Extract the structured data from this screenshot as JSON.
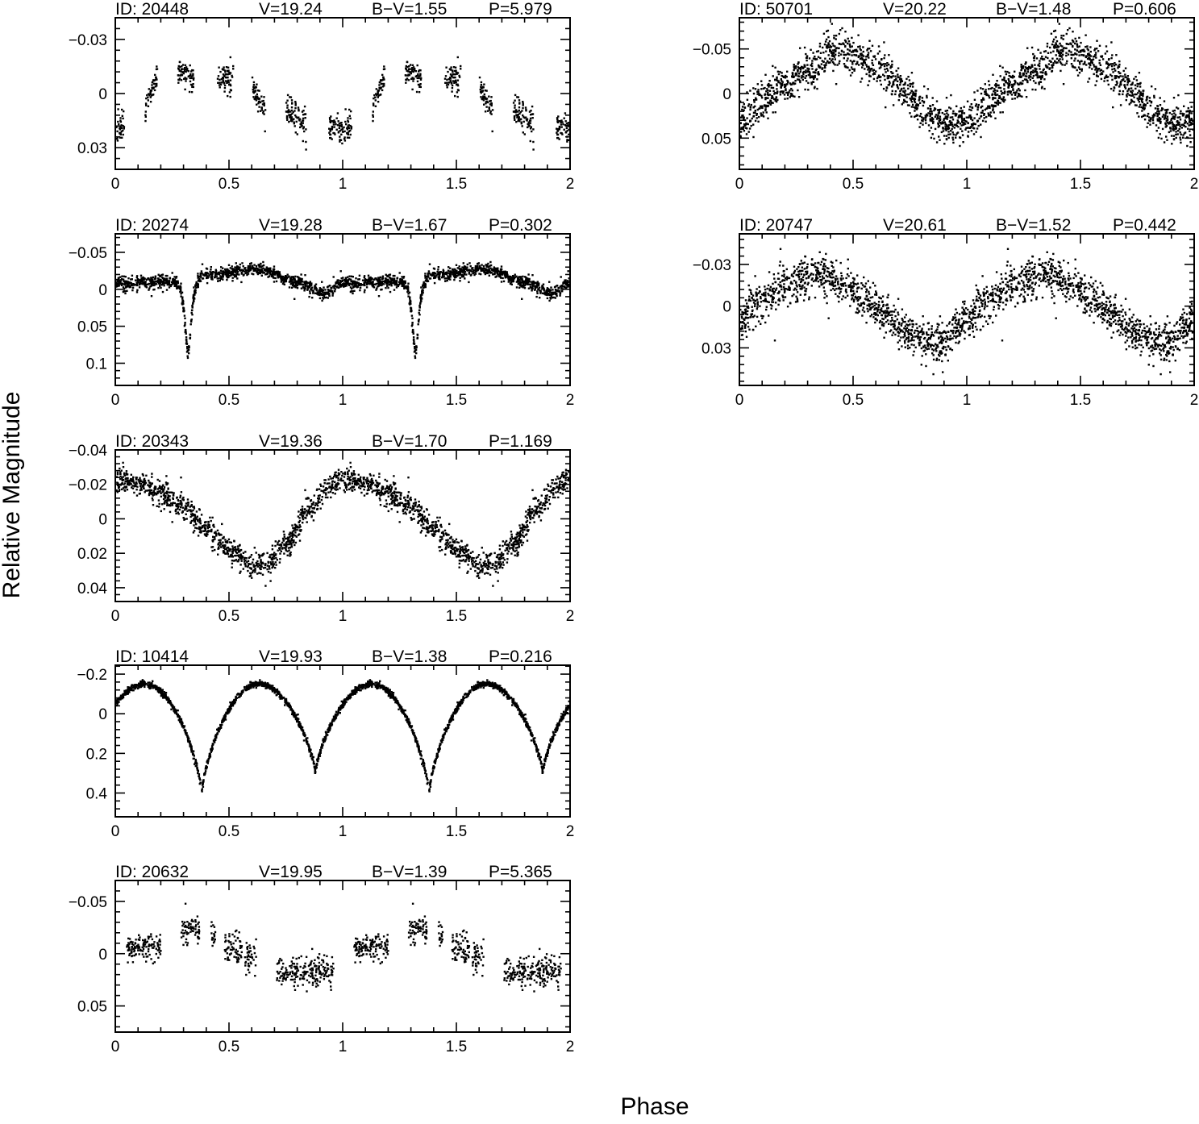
{
  "figure": {
    "ylabel": "Relative Magnitude",
    "xlabel": "Phase",
    "ink_color": "#000000",
    "background": "#ffffff"
  },
  "chart_data": [
    {
      "type": "scatter",
      "id": "20448",
      "V": "19.24",
      "BV": "1.55",
      "P": "5.979",
      "title_parts": [
        "ID: 20448",
        "V=19.24",
        "B−V=1.55",
        "P=5.979"
      ],
      "xlabel": "Phase",
      "ylabel": "Relative Magnitude",
      "xlim": [
        0,
        2
      ],
      "ylim": [
        -0.042,
        0.042
      ],
      "y_inverted": true,
      "xticks": [
        0,
        0.5,
        1,
        1.5,
        2
      ],
      "xtick_labels": [
        "0",
        "0.5",
        "1",
        "1.5",
        "2"
      ],
      "yticks": [
        -0.03,
        0,
        0.03
      ],
      "ytick_labels": [
        "−0.03",
        "0",
        "0.03"
      ],
      "grid": false,
      "model": {
        "shape": "clustered_nights",
        "segments": [
          [
            0.0,
            0.018
          ],
          [
            0.13,
            0.185,
            0.008,
            -0.01
          ],
          [
            0.275,
            0.345,
            -0.012,
            -0.01
          ],
          [
            0.45,
            0.52,
            -0.01,
            -0.008
          ],
          [
            0.6,
            0.66,
            -0.004,
            0.01
          ],
          [
            0.75,
            0.84,
            0.008,
            0.018
          ],
          [
            0.94,
            1.0,
            0.02,
            0.02
          ]
        ],
        "noise": 0.004,
        "points": 420
      }
    },
    {
      "type": "scatter",
      "id": "20274",
      "V": "19.28",
      "BV": "1.67",
      "P": "0.302",
      "title_parts": [
        "ID: 20274",
        "V=19.28",
        "B−V=1.67",
        "P=0.302"
      ],
      "xlabel": "Phase",
      "ylabel": "Relative Magnitude",
      "xlim": [
        0,
        2
      ],
      "ylim": [
        -0.075,
        0.13
      ],
      "y_inverted": true,
      "xticks": [
        0,
        0.5,
        1,
        1.5,
        2
      ],
      "xtick_labels": [
        "0",
        "0.5",
        "1",
        "1.5",
        "2"
      ],
      "yticks": [
        -0.05,
        0,
        0.05,
        0.1
      ],
      "ytick_labels": [
        "−0.05",
        "0",
        "0.05",
        "0.1"
      ],
      "grid": false,
      "model": {
        "shape": "eclipsing",
        "baseline": [
          [
            0.0,
            -0.008
          ],
          [
            0.2,
            -0.01
          ],
          [
            0.45,
            -0.02
          ],
          [
            0.62,
            -0.028
          ],
          [
            0.8,
            -0.01
          ],
          [
            0.92,
            0.005
          ],
          [
            1.0,
            -0.008
          ]
        ],
        "eclipse_center": 0.32,
        "eclipse_depth": 0.105,
        "eclipse_width": 0.035,
        "noise": 0.0045,
        "points": 1100
      }
    },
    {
      "type": "scatter",
      "id": "20343",
      "V": "19.36",
      "BV": "1.70",
      "P": "1.169",
      "title_parts": [
        "ID: 20343",
        "V=19.36",
        "B−V=1.70",
        "P=1.169"
      ],
      "xlabel": "Phase",
      "ylabel": "Relative Magnitude",
      "xlim": [
        0,
        2
      ],
      "ylim": [
        -0.04,
        0.048
      ],
      "y_inverted": true,
      "xticks": [
        0,
        0.5,
        1,
        1.5,
        2
      ],
      "xtick_labels": [
        "0",
        "0.5",
        "1",
        "1.5",
        "2"
      ],
      "yticks": [
        -0.04,
        -0.02,
        0,
        0.02,
        0.04
      ],
      "ytick_labels": [
        "−0.04",
        "−0.02",
        "0",
        "0.02",
        "0.04"
      ],
      "grid": false,
      "model": {
        "shape": "curve",
        "curve": [
          [
            0.0,
            -0.023
          ],
          [
            0.1,
            -0.02
          ],
          [
            0.2,
            -0.015
          ],
          [
            0.3,
            -0.007
          ],
          [
            0.4,
            0.006
          ],
          [
            0.5,
            0.018
          ],
          [
            0.6,
            0.026
          ],
          [
            0.66,
            0.027
          ],
          [
            0.75,
            0.015
          ],
          [
            0.85,
            -0.005
          ],
          [
            0.95,
            -0.02
          ],
          [
            1.0,
            -0.023
          ]
        ],
        "noise": 0.0035,
        "points": 1000
      }
    },
    {
      "type": "scatter",
      "id": "10414",
      "V": "19.93",
      "BV": "1.38",
      "P": "0.216",
      "title_parts": [
        "ID: 10414",
        "V=19.93",
        "B−V=1.38",
        "P=0.216"
      ],
      "xlabel": "Phase",
      "ylabel": "Relative Magnitude",
      "xlim": [
        0,
        2
      ],
      "ylim": [
        -0.245,
        0.52
      ],
      "y_inverted": true,
      "xticks": [
        0,
        0.5,
        1,
        1.5,
        2
      ],
      "xtick_labels": [
        "0",
        "0.5",
        "1",
        "1.5",
        "2"
      ],
      "yticks": [
        -0.2,
        0,
        0.2,
        0.4
      ],
      "ytick_labels": [
        "−0.2",
        "0",
        "0.2",
        "0.4"
      ],
      "grid": false,
      "model": {
        "shape": "w_uma",
        "max_level": -0.15,
        "primary_min": 0.4,
        "secondary_min": 0.3,
        "primary_phase": 0.38,
        "secondary_phase": 0.88,
        "noise": 0.008,
        "points": 1200
      }
    },
    {
      "type": "scatter",
      "id": "20632",
      "V": "19.95",
      "BV": "1.39",
      "P": "5.365",
      "title_parts": [
        "ID: 20632",
        "V=19.95",
        "B−V=1.39",
        "P=5.365"
      ],
      "xlabel": "Phase",
      "ylabel": "Relative Magnitude",
      "xlim": [
        0,
        2
      ],
      "ylim": [
        -0.07,
        0.075
      ],
      "y_inverted": true,
      "xticks": [
        0,
        0.5,
        1,
        1.5,
        2
      ],
      "xtick_labels": [
        "0",
        "0.5",
        "1",
        "1.5",
        "2"
      ],
      "yticks": [
        -0.05,
        0,
        0.05
      ],
      "ytick_labels": [
        "−0.05",
        "0",
        "0.05"
      ],
      "grid": false,
      "model": {
        "shape": "clustered_nights",
        "segments": [
          [
            0.05,
            0.2,
            -0.006,
            -0.008
          ],
          [
            0.29,
            0.37,
            -0.027,
            -0.022
          ],
          [
            0.42,
            0.44,
            -0.022,
            -0.018
          ],
          [
            0.48,
            0.56,
            -0.008,
            -0.002
          ],
          [
            0.57,
            0.62,
            0.004,
            0.006
          ],
          [
            0.71,
            0.96,
            0.018,
            0.016
          ]
        ],
        "noise": 0.007,
        "points": 520
      }
    },
    {
      "type": "scatter",
      "id": "50701",
      "V": "20.22",
      "BV": "1.48",
      "P": "0.606",
      "title_parts": [
        "ID: 50701",
        "V=20.22",
        "B−V=1.48",
        "P=0.606"
      ],
      "xlabel": "Phase",
      "ylabel": "Relative Magnitude",
      "xlim": [
        0,
        2
      ],
      "ylim": [
        -0.085,
        0.085
      ],
      "y_inverted": true,
      "xticks": [
        0,
        0.5,
        1,
        1.5,
        2
      ],
      "xtick_labels": [
        "0",
        "0.5",
        "1",
        "1.5",
        "2"
      ],
      "yticks": [
        -0.05,
        0,
        0.05
      ],
      "ytick_labels": [
        "−0.05",
        "0",
        "0.05"
      ],
      "grid": false,
      "model": {
        "shape": "curve",
        "curve": [
          [
            0.0,
            0.03
          ],
          [
            0.1,
            0.008
          ],
          [
            0.2,
            -0.01
          ],
          [
            0.3,
            -0.025
          ],
          [
            0.4,
            -0.045
          ],
          [
            0.45,
            -0.048
          ],
          [
            0.5,
            -0.045
          ],
          [
            0.6,
            -0.03
          ],
          [
            0.7,
            -0.01
          ],
          [
            0.8,
            0.015
          ],
          [
            0.9,
            0.032
          ],
          [
            0.95,
            0.035
          ],
          [
            1.0,
            0.03
          ]
        ],
        "noise": 0.011,
        "points": 1050
      }
    },
    {
      "type": "scatter",
      "id": "20747",
      "V": "20.61",
      "BV": "1.52",
      "P": "0.442",
      "title_parts": [
        "ID: 20747",
        "V=20.61",
        "B−V=1.52",
        "P=0.442"
      ],
      "xlabel": "Phase",
      "ylabel": "Relative Magnitude",
      "xlim": [
        0,
        2
      ],
      "ylim": [
        -0.052,
        0.057
      ],
      "y_inverted": true,
      "xticks": [
        0,
        0.5,
        1,
        1.5,
        2
      ],
      "xtick_labels": [
        "0",
        "0.5",
        "1",
        "1.5",
        "2"
      ],
      "yticks": [
        -0.03,
        0,
        0.03
      ],
      "ytick_labels": [
        "−0.03",
        "0",
        "0.03"
      ],
      "grid": false,
      "model": {
        "shape": "curve",
        "curve": [
          [
            0.0,
            0.01
          ],
          [
            0.1,
            -0.005
          ],
          [
            0.2,
            -0.015
          ],
          [
            0.3,
            -0.022
          ],
          [
            0.35,
            -0.024
          ],
          [
            0.45,
            -0.015
          ],
          [
            0.55,
            -0.005
          ],
          [
            0.65,
            0.008
          ],
          [
            0.75,
            0.02
          ],
          [
            0.85,
            0.026
          ],
          [
            0.9,
            0.025
          ],
          [
            1.0,
            0.01
          ]
        ],
        "noise": 0.007,
        "points": 1050
      }
    }
  ]
}
